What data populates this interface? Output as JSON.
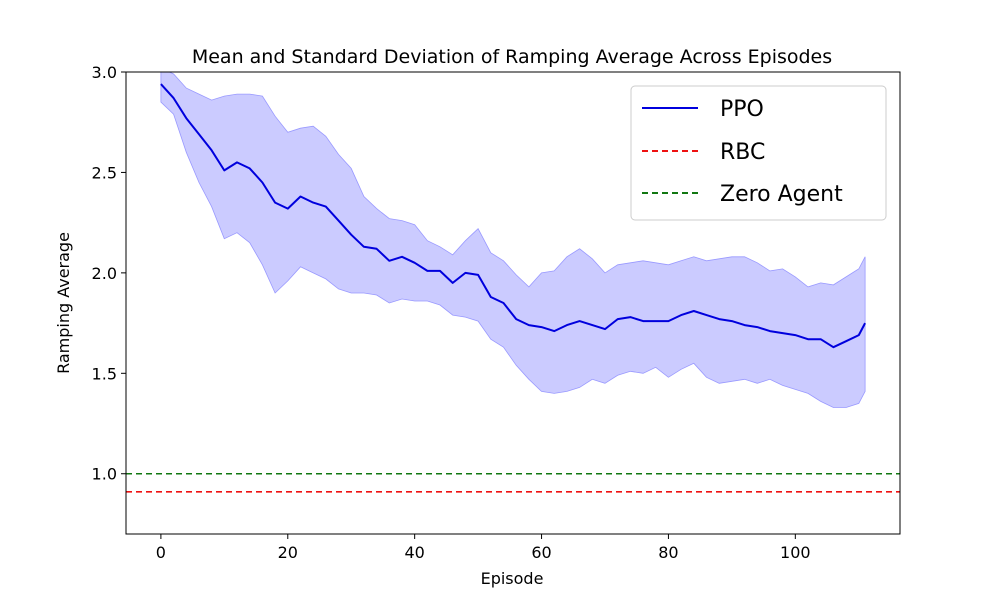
{
  "chart_data": {
    "type": "line",
    "title": "Mean and Standard Deviation of Ramping Average Across Episodes",
    "xlabel": "Episode",
    "ylabel": "Ramping Average",
    "xlim": [
      -5.5,
      116.5
    ],
    "ylim": [
      0.7,
      3.0
    ],
    "xticks": [
      0,
      20,
      40,
      60,
      80,
      100
    ],
    "yticks": [
      1.0,
      1.5,
      2.0,
      2.5,
      3.0
    ],
    "xtick_labels": [
      "0",
      "20",
      "40",
      "60",
      "80",
      "100"
    ],
    "ytick_labels": [
      "1.0",
      "1.5",
      "2.0",
      "2.5",
      "3.0"
    ],
    "grid": false,
    "legend_position": "top-right",
    "series": [
      {
        "name": "PPO",
        "style": "solid",
        "color": "#0000dd",
        "band_color": "#c8c8ff",
        "x": [
          0,
          2,
          4,
          6,
          8,
          10,
          12,
          14,
          16,
          18,
          20,
          22,
          24,
          26,
          28,
          30,
          32,
          34,
          36,
          38,
          40,
          42,
          44,
          46,
          48,
          50,
          52,
          54,
          56,
          58,
          60,
          62,
          64,
          66,
          68,
          70,
          72,
          74,
          76,
          78,
          80,
          82,
          84,
          86,
          88,
          90,
          92,
          94,
          96,
          98,
          100,
          102,
          104,
          106,
          108,
          110,
          111
        ],
        "mean": [
          2.94,
          2.87,
          2.77,
          2.69,
          2.61,
          2.51,
          2.55,
          2.52,
          2.45,
          2.35,
          2.32,
          2.38,
          2.35,
          2.33,
          2.26,
          2.19,
          2.13,
          2.12,
          2.06,
          2.08,
          2.05,
          2.01,
          2.01,
          1.95,
          2.0,
          1.99,
          1.88,
          1.85,
          1.77,
          1.74,
          1.73,
          1.71,
          1.74,
          1.76,
          1.74,
          1.72,
          1.77,
          1.78,
          1.76,
          1.76,
          1.76,
          1.79,
          1.81,
          1.79,
          1.77,
          1.76,
          1.74,
          1.73,
          1.71,
          1.7,
          1.69,
          1.67,
          1.67,
          1.63,
          1.66,
          1.69,
          1.75
        ],
        "upper": [
          3.02,
          2.99,
          2.92,
          2.89,
          2.86,
          2.88,
          2.89,
          2.89,
          2.88,
          2.78,
          2.7,
          2.72,
          2.73,
          2.68,
          2.59,
          2.52,
          2.38,
          2.32,
          2.27,
          2.26,
          2.24,
          2.16,
          2.13,
          2.09,
          2.16,
          2.22,
          2.1,
          2.06,
          1.99,
          1.93,
          2.0,
          2.01,
          2.08,
          2.12,
          2.07,
          2.0,
          2.04,
          2.05,
          2.06,
          2.05,
          2.04,
          2.06,
          2.08,
          2.06,
          2.07,
          2.08,
          2.08,
          2.05,
          2.01,
          2.02,
          1.98,
          1.93,
          1.95,
          1.94,
          1.98,
          2.02,
          2.08
        ],
        "lower": [
          2.85,
          2.79,
          2.6,
          2.45,
          2.33,
          2.17,
          2.2,
          2.15,
          2.04,
          1.9,
          1.96,
          2.03,
          2.0,
          1.97,
          1.92,
          1.9,
          1.9,
          1.89,
          1.85,
          1.87,
          1.86,
          1.86,
          1.84,
          1.79,
          1.78,
          1.76,
          1.67,
          1.63,
          1.54,
          1.47,
          1.41,
          1.4,
          1.41,
          1.43,
          1.47,
          1.45,
          1.49,
          1.51,
          1.5,
          1.53,
          1.48,
          1.52,
          1.55,
          1.48,
          1.45,
          1.46,
          1.47,
          1.45,
          1.47,
          1.44,
          1.42,
          1.4,
          1.36,
          1.33,
          1.33,
          1.35,
          1.41
        ]
      },
      {
        "name": "RBC",
        "style": "dashed",
        "color": "#ee1111",
        "y": 0.91
      },
      {
        "name": "Zero Agent",
        "style": "dashed",
        "color": "#117711",
        "y": 1.0
      }
    ]
  }
}
